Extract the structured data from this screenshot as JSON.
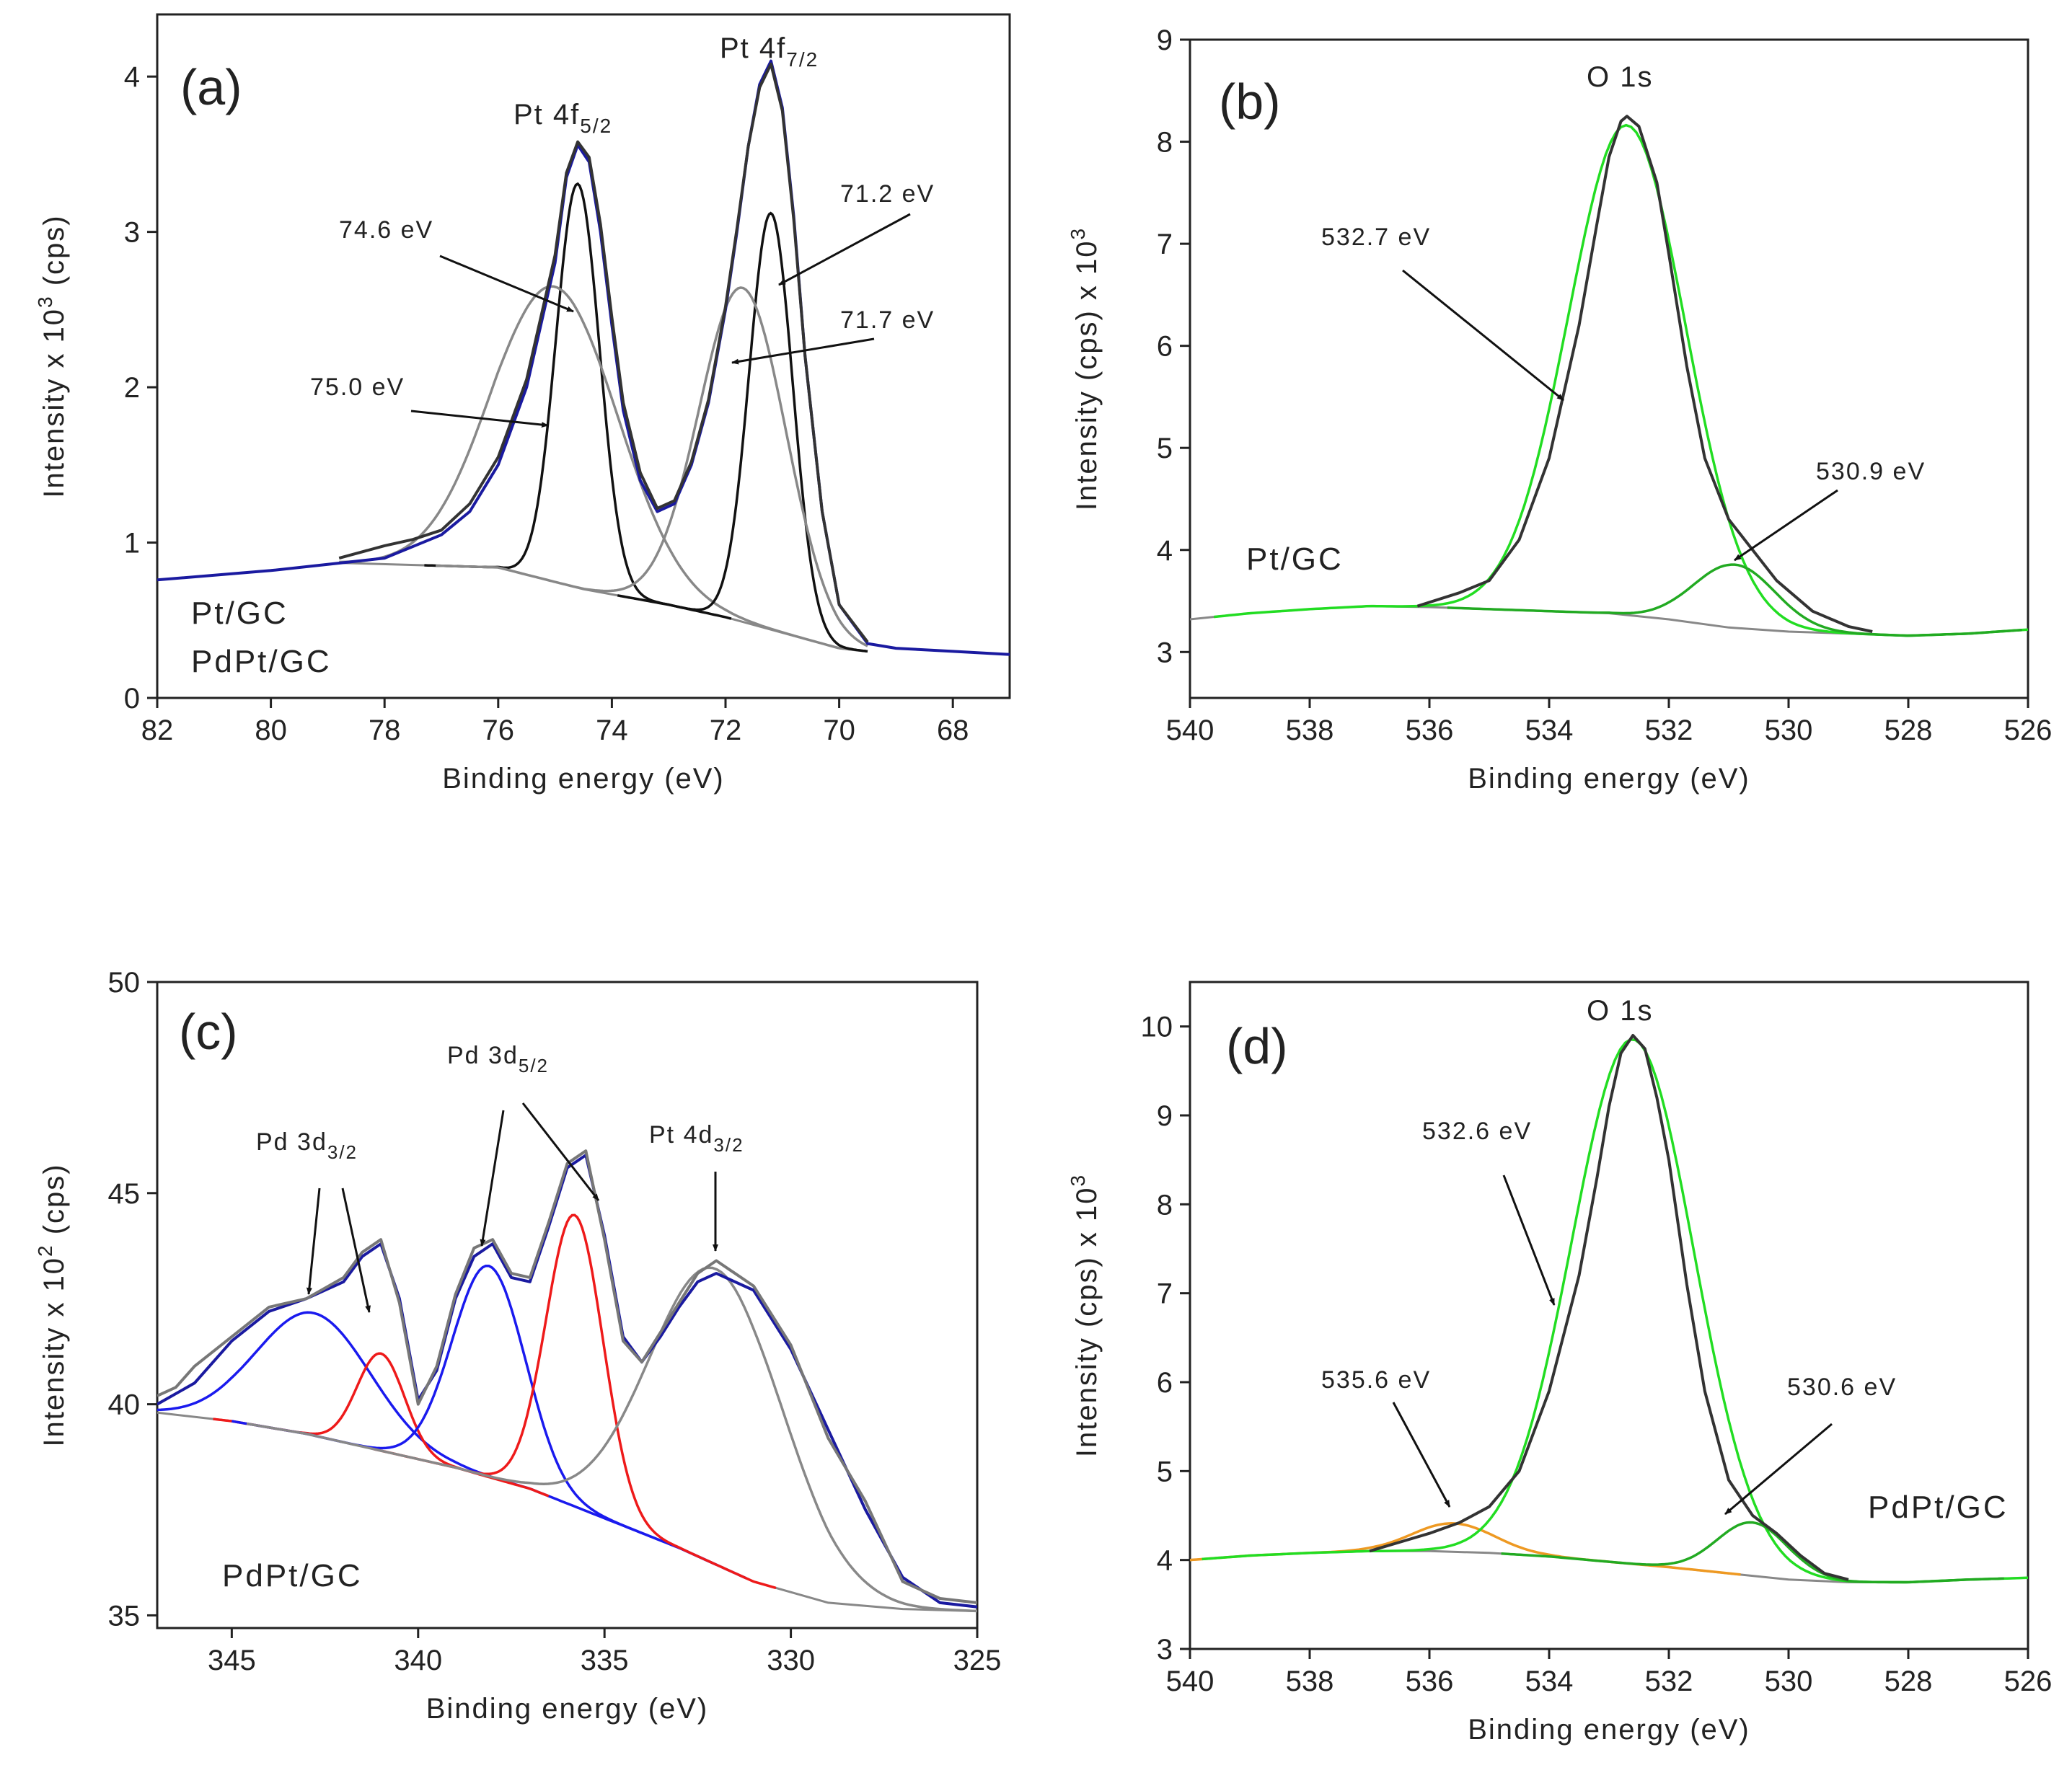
{
  "chart_data": [
    {
      "panel": "(a)",
      "type": "line",
      "xlabel": "Binding energy (eV)",
      "ylabel": "Intensity x 10^3 (cps)",
      "ylabel_parts": {
        "pre": "Intensity x 10",
        "sup": "3",
        "post": " (cps)"
      },
      "xlim": [
        82,
        67
      ],
      "ylim": [
        0,
        4.4
      ],
      "xticks": [
        82,
        80,
        78,
        76,
        74,
        72,
        70,
        68
      ],
      "yticks": [
        0,
        1,
        2,
        3,
        4
      ],
      "samples": [
        "Pt/GC",
        "PdPt/GC"
      ],
      "background": {
        "color": "#888888",
        "x": [
          78.8,
          76,
          74.5,
          73,
          72,
          71,
          70,
          69.5
        ],
        "y": [
          0.87,
          0.84,
          0.7,
          0.6,
          0.52,
          0.42,
          0.32,
          0.3
        ]
      },
      "peaks": [
        {
          "name": "Pt 4f5/2 (Pt0)",
          "color": "#111111",
          "center": 74.6,
          "height": 2.6,
          "width": 0.9,
          "label": "74.6 eV"
        },
        {
          "name": "Pt 4f5/2 (Pt2+)",
          "color": "#888888",
          "center": 75.0,
          "height": 1.9,
          "width": 2.6,
          "label": "75.0 eV"
        },
        {
          "name": "Pt 4f7/2 (Pt0)",
          "color": "#111111",
          "center": 71.2,
          "height": 2.68,
          "width": 0.9,
          "label": "71.2 eV"
        },
        {
          "name": "Pt 4f7/2 (Pt2+)",
          "color": "#888888",
          "center": 71.7,
          "height": 2.15,
          "width": 1.8,
          "label": "71.7 eV"
        }
      ],
      "curves": [
        {
          "name": "PdPt/GC envelope",
          "color": "#1a1aa0",
          "x": [
            82,
            80,
            79,
            78,
            77,
            76.5,
            76,
            75.5,
            75,
            74.8,
            74.6,
            74.4,
            74.2,
            74,
            73.8,
            73.5,
            73.2,
            72.9,
            72.6,
            72.3,
            72,
            71.8,
            71.6,
            71.4,
            71.2,
            71,
            70.8,
            70.6,
            70.3,
            70,
            69.5,
            69,
            68,
            67
          ],
          "y": [
            0.76,
            0.82,
            0.86,
            0.9,
            1.05,
            1.2,
            1.5,
            2.0,
            2.8,
            3.35,
            3.56,
            3.45,
            3.0,
            2.4,
            1.85,
            1.4,
            1.2,
            1.25,
            1.5,
            1.9,
            2.5,
            3.0,
            3.55,
            3.95,
            4.1,
            3.8,
            3.1,
            2.2,
            1.2,
            0.6,
            0.35,
            0.32,
            0.3,
            0.28
          ]
        },
        {
          "name": "Pt/GC data",
          "color": "#333333",
          "x": [
            78.8,
            78,
            77.5,
            77,
            76.5,
            76,
            75.5,
            75,
            74.8,
            74.6,
            74.4,
            74.2,
            74,
            73.8,
            73.5,
            73.2,
            72.9,
            72.6,
            72.3,
            72,
            71.8,
            71.6,
            71.4,
            71.2,
            71,
            70.8,
            70.6,
            70.3,
            70,
            69.5
          ],
          "y": [
            0.9,
            0.98,
            1.02,
            1.08,
            1.25,
            1.55,
            2.05,
            2.85,
            3.38,
            3.58,
            3.48,
            3.05,
            2.45,
            1.9,
            1.45,
            1.22,
            1.27,
            1.52,
            1.92,
            2.52,
            3.02,
            3.55,
            3.93,
            4.08,
            3.78,
            3.08,
            2.2,
            1.2,
            0.6,
            0.36
          ]
        }
      ],
      "annotations": [
        "Pt 4f5/2",
        "Pt 4f7/2"
      ]
    },
    {
      "panel": "(b)",
      "type": "line",
      "xlabel": "Binding energy (eV)",
      "ylabel": "Intensity (cps) x 10^3",
      "ylabel_parts": {
        "pre": "Intensity (cps) x 10",
        "sup": "3",
        "post": ""
      },
      "xlim": [
        540,
        526
      ],
      "ylim": [
        2.55,
        9.0
      ],
      "xticks": [
        540,
        538,
        536,
        534,
        532,
        530,
        528,
        526
      ],
      "yticks": [
        3,
        4,
        5,
        6,
        7,
        8,
        9
      ],
      "samples": [
        "Pt/GC"
      ],
      "background": {
        "color": "#888888",
        "x": [
          540,
          539,
          538,
          537,
          536,
          535,
          534,
          533,
          532,
          531,
          530,
          529,
          528,
          527,
          526
        ],
        "y": [
          3.32,
          3.38,
          3.42,
          3.45,
          3.44,
          3.42,
          3.4,
          3.38,
          3.32,
          3.24,
          3.2,
          3.18,
          3.16,
          3.18,
          3.22
        ]
      },
      "peaks": [
        {
          "name": "O 1s main",
          "color": "#22dd22",
          "center": 532.7,
          "height": 4.8,
          "width": 2.3,
          "label": "532.7 eV"
        },
        {
          "name": "O 1s shoulder",
          "color": "#22aa22",
          "center": 530.9,
          "height": 0.62,
          "width": 1.6,
          "label": "530.9 eV"
        }
      ],
      "curves": [
        {
          "name": "Pt/GC data",
          "color": "#333333",
          "x": [
            536.2,
            535.5,
            535,
            534.5,
            534,
            533.5,
            533.2,
            533,
            532.8,
            532.7,
            532.5,
            532.2,
            532,
            531.7,
            531.4,
            531,
            530.6,
            530.2,
            529.6,
            529,
            528.6
          ],
          "y": [
            3.45,
            3.58,
            3.7,
            4.1,
            4.9,
            6.2,
            7.2,
            7.85,
            8.2,
            8.25,
            8.15,
            7.6,
            6.9,
            5.8,
            4.9,
            4.3,
            4.0,
            3.7,
            3.4,
            3.25,
            3.2
          ]
        }
      ],
      "annotations": [
        "O 1s"
      ]
    },
    {
      "panel": "(c)",
      "type": "line",
      "xlabel": "Binding energy (eV)",
      "ylabel": "Intensity x 10^2 (cps)",
      "ylabel_parts": {
        "pre": "Intensity x 10",
        "sup": "2",
        "post": " (cps)"
      },
      "xlim": [
        347,
        325
      ],
      "ylim": [
        34.7,
        50
      ],
      "xticks": [
        345,
        340,
        335,
        330,
        325
      ],
      "yticks": [
        35,
        40,
        45,
        50
      ],
      "samples": [
        "PdPt/GC"
      ],
      "background": {
        "color": "#888888",
        "x": [
          347,
          345,
          343,
          341,
          339,
          337,
          335,
          333,
          331,
          329,
          327,
          325
        ],
        "y": [
          39.8,
          39.6,
          39.3,
          38.9,
          38.5,
          38.0,
          37.3,
          36.6,
          35.8,
          35.3,
          35.15,
          35.1
        ]
      },
      "peaks": [
        {
          "name": "Pd 3d3/2 (a)",
          "color": "#1a1aee",
          "center": 342.8,
          "height": 2.9,
          "width": 3.6,
          "label": ""
        },
        {
          "name": "Pd 3d3/2 (b)",
          "color": "#ee1a1a",
          "center": 341.0,
          "height": 2.3,
          "width": 1.5,
          "label": ""
        },
        {
          "name": "Pd 3d5/2 (a)",
          "color": "#1a1aee",
          "center": 338.1,
          "height": 5.0,
          "width": 2.3,
          "label": ""
        },
        {
          "name": "Pd 3d5/2 (b)",
          "color": "#ee1a1a",
          "center": 335.8,
          "height": 6.9,
          "width": 1.8,
          "label": ""
        },
        {
          "name": "Pt 4d3/2",
          "color": "#888888",
          "center": 332.0,
          "height": 7.0,
          "width": 4.2,
          "label": ""
        }
      ],
      "curves": [
        {
          "name": "PdPt/GC envelope",
          "color": "#1a1aa0",
          "x": [
            347,
            346,
            345,
            344,
            343,
            342,
            341.5,
            341,
            340.5,
            340,
            339.5,
            339,
            338.5,
            338,
            337.5,
            337,
            336.5,
            336,
            335.5,
            335,
            334.5,
            334,
            333.5,
            333,
            332.5,
            332,
            331,
            330,
            329,
            328,
            327,
            326,
            325
          ],
          "y": [
            40.0,
            40.5,
            41.5,
            42.2,
            42.5,
            42.9,
            43.5,
            43.8,
            42.5,
            40.1,
            40.8,
            42.5,
            43.5,
            43.8,
            43.0,
            42.9,
            44.2,
            45.6,
            45.9,
            44.0,
            41.6,
            41.0,
            41.6,
            42.3,
            42.9,
            43.1,
            42.7,
            41.3,
            39.4,
            37.5,
            35.9,
            35.3,
            35.2
          ]
        },
        {
          "name": "PdPt/GC data",
          "color": "#777777",
          "x": [
            347,
            346.5,
            346,
            345,
            344,
            343,
            342,
            341.5,
            341,
            340.5,
            340,
            339.5,
            339,
            338.5,
            338,
            337.5,
            337,
            336.5,
            336,
            335.5,
            335,
            334.5,
            334,
            333.5,
            333,
            332.5,
            332,
            331,
            330,
            329,
            328,
            327,
            326,
            325
          ],
          "y": [
            40.2,
            40.4,
            40.9,
            41.6,
            42.3,
            42.5,
            43.0,
            43.6,
            43.9,
            42.4,
            40.0,
            40.9,
            42.6,
            43.7,
            43.9,
            43.1,
            43.0,
            44.3,
            45.7,
            46.0,
            43.9,
            41.5,
            41.0,
            41.7,
            42.4,
            43.1,
            43.4,
            42.8,
            41.4,
            39.2,
            37.7,
            35.8,
            35.4,
            35.3
          ]
        }
      ],
      "annotations": [
        "Pd 3d3/2",
        "Pd 3d5/2",
        "Pt 4d3/2"
      ]
    },
    {
      "panel": "(d)",
      "type": "line",
      "xlabel": "Binding energy (eV)",
      "ylabel": "Intensity (cps) x 10^3",
      "ylabel_parts": {
        "pre": "Intensity (cps) x 10",
        "sup": "3",
        "post": ""
      },
      "xlim": [
        540,
        526
      ],
      "ylim": [
        3.0,
        10.5
      ],
      "xticks": [
        540,
        538,
        536,
        534,
        532,
        530,
        528,
        526
      ],
      "yticks": [
        3,
        4,
        5,
        6,
        7,
        8,
        9,
        10
      ],
      "samples": [
        "PdPt/GC"
      ],
      "background": {
        "color": "#888888",
        "x": [
          540,
          539,
          538,
          537,
          536,
          535,
          534,
          533,
          532,
          531,
          530,
          529,
          528,
          527,
          526
        ],
        "y": [
          4.0,
          4.05,
          4.08,
          4.1,
          4.1,
          4.08,
          4.04,
          3.98,
          3.92,
          3.85,
          3.78,
          3.75,
          3.75,
          3.78,
          3.8
        ]
      },
      "peaks": [
        {
          "name": "O 1s shoulder high BE",
          "color": "#ee9922",
          "center": 535.6,
          "height": 0.32,
          "width": 1.6,
          "label": "535.6 eV"
        },
        {
          "name": "O 1s main",
          "color": "#22dd22",
          "center": 532.6,
          "height": 5.9,
          "width": 2.4,
          "label": "532.6 eV"
        },
        {
          "name": "O 1s shoulder low BE",
          "color": "#22aa22",
          "center": 530.6,
          "height": 0.6,
          "width": 1.4,
          "label": "530.6 eV"
        }
      ],
      "curves": [
        {
          "name": "PdPt/GC data",
          "color": "#333333",
          "x": [
            537,
            536.5,
            536,
            535.5,
            535,
            534.5,
            534,
            533.5,
            533.2,
            533,
            532.8,
            532.6,
            532.4,
            532.2,
            532,
            531.7,
            531.4,
            531,
            530.6,
            530.2,
            529.8,
            529.4,
            529
          ],
          "y": [
            4.1,
            4.2,
            4.3,
            4.42,
            4.6,
            5.0,
            5.9,
            7.2,
            8.3,
            9.1,
            9.7,
            9.9,
            9.75,
            9.2,
            8.5,
            7.1,
            5.9,
            4.9,
            4.5,
            4.3,
            4.05,
            3.85,
            3.78
          ]
        }
      ],
      "annotations": [
        "O 1s"
      ]
    }
  ],
  "panel_a": {
    "panel_label": "(a)",
    "peak_title_1": {
      "base": "Pt 4f",
      "sub": "5/2"
    },
    "peak_title_2": {
      "base": "Pt 4f",
      "sub": "7/2"
    },
    "label_746": "74.6 eV",
    "label_750": "75.0 eV",
    "label_712": "71.2 eV",
    "label_717": "71.7 eV",
    "sample_1": "Pt/GC",
    "sample_2": "PdPt/GC"
  },
  "panel_b": {
    "panel_label": "(b)",
    "peak_title": "O 1s",
    "label_main": "532.7 eV",
    "label_low": "530.9 eV",
    "sample": "Pt/GC"
  },
  "panel_c": {
    "panel_label": "(c)",
    "peak_title_1": {
      "base": "Pd 3d",
      "sub": "3/2"
    },
    "peak_title_2": {
      "base": "Pd 3d",
      "sub": "5/2"
    },
    "peak_title_3": {
      "base": "Pt 4d",
      "sub": "3/2"
    },
    "sample": "PdPt/GC"
  },
  "panel_d": {
    "panel_label": "(d)",
    "peak_title": "O 1s",
    "label_main": "532.6 eV",
    "label_high": "535.6 eV",
    "label_low": "530.6 eV",
    "sample": "PdPt/GC"
  }
}
